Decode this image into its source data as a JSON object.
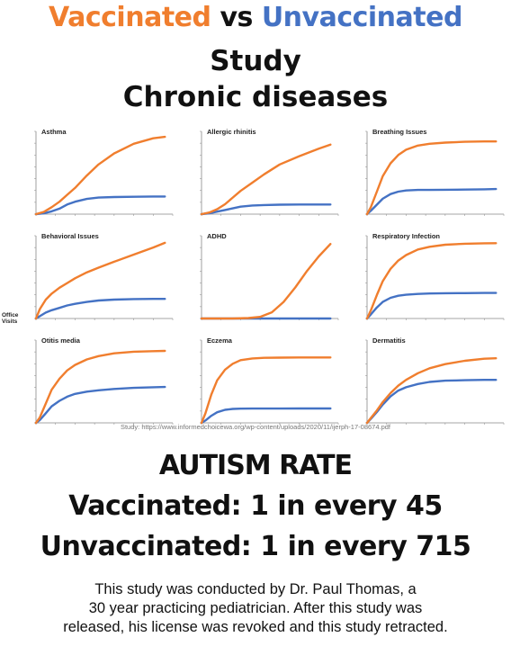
{
  "header": {
    "vaccinated_word": "Vaccinated",
    "vs_word": "vs",
    "unvaccinated_word": "Unvaccinated",
    "line2": "Study",
    "line3": "Chronic diseases"
  },
  "colors": {
    "vaccinated": "#f07e2e",
    "unvaccinated": "#4472c4"
  },
  "y_axis_label": "Office Visits",
  "source_text": "Study: https://www.informedchoicewa.org/wp-content/uploads/2020/11/ijerph-17-08674.pdf",
  "chart_data": [
    {
      "type": "line",
      "title": "Asthma",
      "x": [
        0,
        200,
        400,
        600,
        800,
        1000,
        1300,
        1600,
        2000,
        2500,
        3000,
        3300
      ],
      "xlim": [
        0,
        3500
      ],
      "ylim": [
        0,
        300
      ],
      "series": [
        {
          "values": [
            0,
            8,
            25,
            45,
            70,
            95,
            140,
            180,
            220,
            255,
            275,
            280
          ]
        },
        {
          "values": [
            0,
            3,
            10,
            20,
            35,
            45,
            55,
            60,
            62,
            63,
            64,
            64
          ]
        }
      ]
    },
    {
      "type": "line",
      "title": "Allergic rhinitis",
      "x": [
        0,
        200,
        400,
        600,
        800,
        1000,
        1300,
        1600,
        2000,
        2500,
        3000,
        3300
      ],
      "xlim": [
        0,
        3500
      ],
      "ylim": [
        0,
        500
      ],
      "series": [
        {
          "values": [
            0,
            10,
            30,
            60,
            100,
            140,
            190,
            240,
            300,
            350,
            395,
            420
          ]
        },
        {
          "values": [
            0,
            5,
            15,
            25,
            35,
            45,
            52,
            55,
            57,
            58,
            58,
            58
          ]
        }
      ]
    },
    {
      "type": "line",
      "title": "Breathing Issues",
      "x": [
        0,
        100,
        250,
        400,
        600,
        800,
        1000,
        1300,
        1600,
        2000,
        2500,
        3000,
        3300
      ],
      "xlim": [
        0,
        3500
      ],
      "ylim": [
        0,
        700
      ],
      "series": [
        {
          "values": [
            0,
            60,
            190,
            320,
            430,
            500,
            545,
            580,
            595,
            605,
            612,
            615,
            615
          ]
        },
        {
          "values": [
            0,
            30,
            80,
            130,
            170,
            190,
            200,
            205,
            205,
            206,
            208,
            210,
            212
          ]
        }
      ]
    },
    {
      "type": "line",
      "title": "Behavioral Issues",
      "x": [
        0,
        100,
        250,
        400,
        600,
        800,
        1000,
        1300,
        1600,
        2000,
        2500,
        3000,
        3300
      ],
      "xlim": [
        0,
        3500
      ],
      "ylim": [
        0,
        350
      ],
      "series": [
        {
          "values": [
            0,
            40,
            80,
            105,
            130,
            150,
            170,
            195,
            215,
            240,
            270,
            300,
            320
          ]
        },
        {
          "values": [
            0,
            10,
            25,
            35,
            45,
            55,
            62,
            70,
            76,
            80,
            82,
            83,
            83
          ]
        }
      ]
    },
    {
      "type": "line",
      "title": "ADHD",
      "x": [
        0,
        400,
        800,
        1200,
        1500,
        1800,
        2100,
        2400,
        2700,
        3000,
        3300
      ],
      "xlim": [
        0,
        3500
      ],
      "ylim": [
        0,
        200
      ],
      "series": [
        {
          "values": [
            0,
            0,
            0,
            1,
            4,
            15,
            40,
            75,
            115,
            150,
            180
          ]
        },
        {
          "values": [
            0,
            0,
            0,
            0,
            0,
            0,
            0,
            0,
            0,
            0,
            0
          ]
        }
      ]
    },
    {
      "type": "line",
      "title": "Respiratory Infection",
      "x": [
        0,
        100,
        250,
        400,
        600,
        800,
        1000,
        1300,
        1600,
        2000,
        2500,
        3000,
        3300
      ],
      "xlim": [
        0,
        3500
      ],
      "ylim": [
        0,
        6000
      ],
      "series": [
        {
          "values": [
            0,
            600,
            1700,
            2700,
            3600,
            4200,
            4600,
            5000,
            5200,
            5350,
            5420,
            5450,
            5460
          ]
        },
        {
          "values": [
            0,
            300,
            800,
            1200,
            1500,
            1650,
            1720,
            1780,
            1810,
            1830,
            1840,
            1850,
            1850
          ]
        }
      ]
    },
    {
      "type": "line",
      "title": "Otitis media",
      "x": [
        0,
        100,
        250,
        400,
        600,
        800,
        1000,
        1300,
        1600,
        2000,
        2500,
        3000,
        3300
      ],
      "xlim": [
        0,
        3500
      ],
      "ylim": [
        0,
        3000
      ],
      "series": [
        {
          "values": [
            0,
            200,
            700,
            1200,
            1600,
            1900,
            2100,
            2300,
            2420,
            2520,
            2580,
            2600,
            2610
          ]
        },
        {
          "values": [
            0,
            100,
            350,
            600,
            800,
            950,
            1050,
            1130,
            1180,
            1230,
            1270,
            1290,
            1300
          ]
        }
      ]
    },
    {
      "type": "line",
      "title": "Eczema",
      "x": [
        0,
        100,
        250,
        400,
        600,
        800,
        1000,
        1300,
        1600,
        2000,
        2500,
        3000,
        3300
      ],
      "xlim": [
        0,
        3500
      ],
      "ylim": [
        0,
        700
      ],
      "series": [
        {
          "values": [
            0,
            80,
            240,
            360,
            450,
            500,
            530,
            545,
            550,
            552,
            553,
            553,
            553
          ]
        },
        {
          "values": [
            0,
            20,
            60,
            90,
            110,
            118,
            120,
            121,
            121,
            121,
            122,
            122,
            122
          ]
        }
      ]
    },
    {
      "type": "line",
      "title": "Dermatitis",
      "x": [
        0,
        100,
        250,
        400,
        600,
        800,
        1000,
        1300,
        1600,
        2000,
        2500,
        3000,
        3300
      ],
      "xlim": [
        0,
        3500
      ],
      "ylim": [
        0,
        1000
      ],
      "series": [
        {
          "values": [
            0,
            60,
            150,
            250,
            360,
            450,
            520,
            600,
            660,
            710,
            750,
            775,
            780
          ]
        },
        {
          "values": [
            0,
            50,
            130,
            220,
            320,
            390,
            430,
            470,
            495,
            510,
            515,
            520,
            520
          ]
        }
      ]
    }
  ],
  "autism": {
    "heading": "AUTISM RATE",
    "vaccinated_line": "Vaccinated: 1 in every 45",
    "unvaccinated_line": "Unvaccinated: 1 in every 715"
  },
  "footer": {
    "line1": "This study was conducted by Dr. Paul Thomas, a",
    "line2": "30 year practicing pediatrician. After this study was",
    "line3": "released, his license was revoked and this study retracted."
  }
}
